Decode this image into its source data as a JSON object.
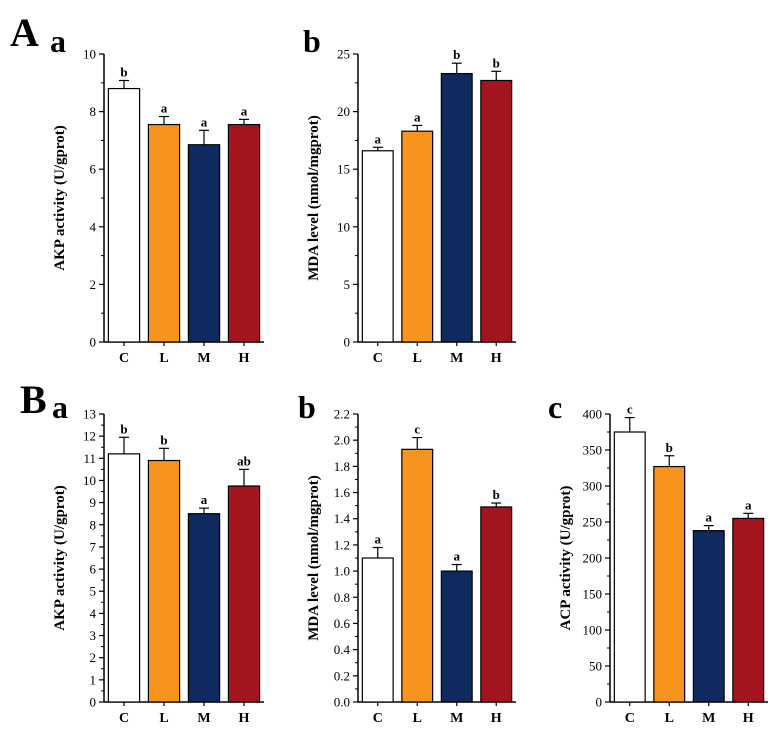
{
  "panels": [
    {
      "id": "A",
      "label": "A"
    },
    {
      "id": "B",
      "label": "B"
    }
  ],
  "chart_data": [
    {
      "panel": "A",
      "sub": "a",
      "type": "bar",
      "title": "",
      "ylabel": "AKP activity (U/gprot)",
      "xlabel": "",
      "categories": [
        "C",
        "L",
        "M",
        "H"
      ],
      "values": [
        8.8,
        7.55,
        6.85,
        7.55
      ],
      "errors": [
        0.28,
        0.28,
        0.5,
        0.18
      ],
      "significance": [
        "b",
        "a",
        "a",
        "a"
      ],
      "colors": [
        "#ffffff",
        "#f7941d",
        "#0f2a5e",
        "#a3141f"
      ],
      "ylim": [
        0,
        10
      ],
      "yticks": [
        "0",
        "2",
        "4",
        "6",
        "8",
        "10"
      ]
    },
    {
      "panel": "A",
      "sub": "b",
      "type": "bar",
      "title": "",
      "ylabel": "MDA level (nmol/mgprot)",
      "xlabel": "",
      "categories": [
        "C",
        "L",
        "M",
        "H"
      ],
      "values": [
        16.6,
        18.3,
        23.3,
        22.7
      ],
      "errors": [
        0.3,
        0.5,
        0.9,
        0.8
      ],
      "significance": [
        "a",
        "a",
        "b",
        "b"
      ],
      "colors": [
        "#ffffff",
        "#f7941d",
        "#0f2a5e",
        "#a3141f"
      ],
      "ylim": [
        0,
        25
      ],
      "yticks": [
        "0",
        "5",
        "10",
        "15",
        "20",
        "25"
      ]
    },
    {
      "panel": "B",
      "sub": "a",
      "type": "bar",
      "title": "",
      "ylabel": "AKP activity (U/gprot)",
      "xlabel": "",
      "categories": [
        "C",
        "L",
        "M",
        "H"
      ],
      "values": [
        11.2,
        10.9,
        8.5,
        9.75
      ],
      "errors": [
        0.75,
        0.55,
        0.25,
        0.75
      ],
      "significance": [
        "b",
        "b",
        "a",
        "ab"
      ],
      "colors": [
        "#ffffff",
        "#f7941d",
        "#0f2a5e",
        "#a3141f"
      ],
      "ylim": [
        0,
        13
      ],
      "yticks": [
        "0",
        "1",
        "2",
        "3",
        "4",
        "5",
        "6",
        "7",
        "8",
        "9",
        "10",
        "11",
        "12",
        "13"
      ]
    },
    {
      "panel": "B",
      "sub": "b",
      "type": "bar",
      "title": "",
      "ylabel": "MDA level (nmol/mgprot)",
      "xlabel": "",
      "categories": [
        "C",
        "L",
        "M",
        "H"
      ],
      "values": [
        1.1,
        1.93,
        1.0,
        1.49
      ],
      "errors": [
        0.08,
        0.09,
        0.05,
        0.03
      ],
      "significance": [
        "a",
        "c",
        "a",
        "b"
      ],
      "colors": [
        "#ffffff",
        "#f7941d",
        "#0f2a5e",
        "#a3141f"
      ],
      "ylim": [
        0,
        2.2
      ],
      "yticks": [
        "0.0",
        "0.2",
        "0.4",
        "0.6",
        "0.8",
        "1.0",
        "1.2",
        "1.4",
        "1.6",
        "1.8",
        "2.0",
        "2.2"
      ]
    },
    {
      "panel": "B",
      "sub": "c",
      "type": "bar",
      "title": "",
      "ylabel": "ACP activity (U/gprot)",
      "xlabel": "",
      "categories": [
        "C",
        "L",
        "M",
        "H"
      ],
      "values": [
        375,
        327,
        238,
        255
      ],
      "errors": [
        20,
        15,
        7,
        7
      ],
      "significance": [
        "c",
        "b",
        "a",
        "a"
      ],
      "colors": [
        "#ffffff",
        "#f7941d",
        "#0f2a5e",
        "#a3141f"
      ],
      "ylim": [
        0,
        400
      ],
      "yticks": [
        "0",
        "50",
        "100",
        "150",
        "200",
        "250",
        "300",
        "350",
        "400"
      ]
    }
  ]
}
